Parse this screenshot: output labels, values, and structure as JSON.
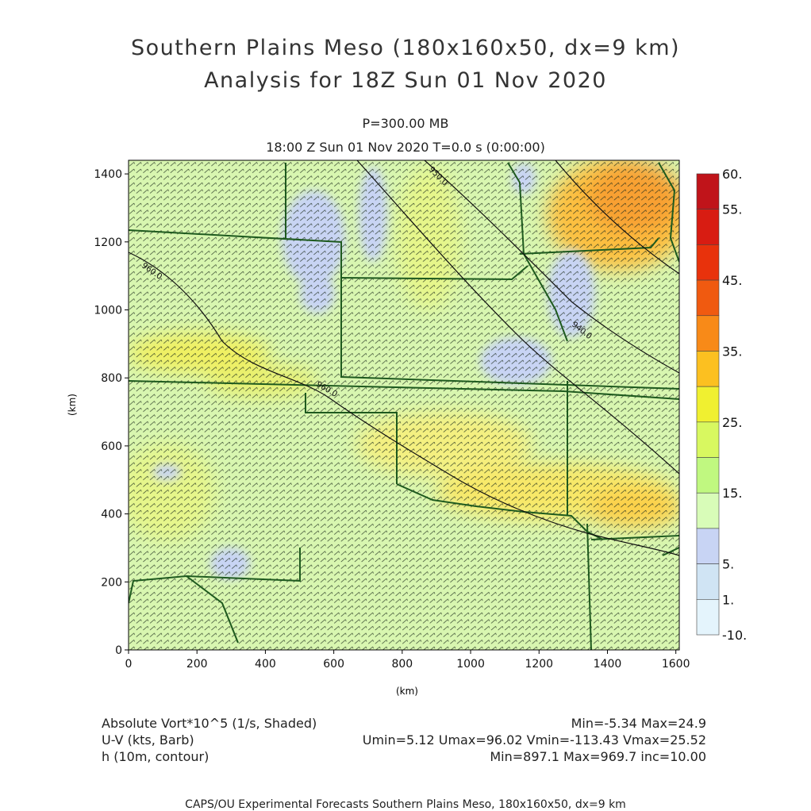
{
  "title_line1": "Southern Plains Meso (180x160x50, dx=9 km)",
  "title_line2": "Analysis for 18Z Sun 01 Nov 2020",
  "level": "P=300.00 MB",
  "valid_time": "18:00 Z Sun 01 Nov 2020    T=0.0 s (0:00:00)",
  "axes": {
    "x_label": "(km)",
    "y_label": "(km)",
    "x_ticks": [
      "0",
      "200",
      "400",
      "600",
      "800",
      "1000",
      "1200",
      "1400",
      "1600"
    ],
    "y_ticks": [
      "0",
      "200",
      "400",
      "600",
      "800",
      "1000",
      "1200",
      "1400"
    ]
  },
  "colorbar": {
    "labels": [
      "60.",
      "55.",
      "45.",
      "35.",
      "25.",
      "15.",
      "5.",
      "1.",
      "-10."
    ],
    "colors": [
      "#c0141a",
      "#d81c12",
      "#e8320c",
      "#f05a10",
      "#f88a18",
      "#fcc020",
      "#f0f030",
      "#d8f860",
      "#c0f880",
      "#d8fcb8",
      "#c8d4f4",
      "#d0e4f4",
      "#e4f4fc"
    ]
  },
  "contours": {
    "labels": [
      "960.0",
      "960.0",
      "950.0",
      "940.0"
    ]
  },
  "legend": {
    "vort_label": "Absolute Vort*10^5 (1/s, Shaded)",
    "vort_stats": "Min=-5.34 Max=24.9",
    "wind_label": "U-V (kts, Barb)",
    "wind_stats": "Umin=5.12 Umax=96.02 Vmin=-113.43 Vmax=25.52",
    "height_label": "h (10m, contour)",
    "height_stats": "Min=897.1 Max=969.7 inc=10.00"
  },
  "footer": "CAPS/OU Experimental Forecasts  Southern Plains Meso, 180x160x50, dx=9 km"
}
